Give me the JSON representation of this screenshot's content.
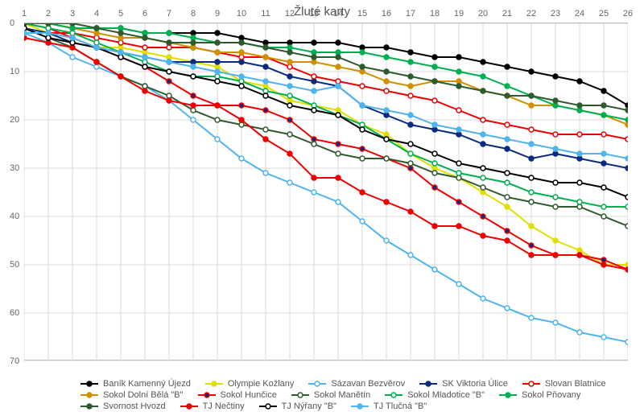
{
  "chart": {
    "type": "line",
    "title": "Žluté karty",
    "title_fontsize": 15,
    "title_color": "#555555",
    "label_fontsize": 11,
    "label_color": "#666666",
    "background_color": "#ffffff",
    "grid_color": "#d9d9d9",
    "axis_color": "#bbbbbb",
    "line_width": 2,
    "marker_radius": 3,
    "marker_style": "circle",
    "x_categories": [
      1,
      2,
      3,
      4,
      5,
      6,
      7,
      8,
      9,
      10,
      11,
      12,
      13,
      14,
      15,
      16,
      17,
      18,
      19,
      20,
      21,
      22,
      23,
      24,
      25,
      26
    ],
    "xlim": [
      1,
      26
    ],
    "ylim": [
      0,
      70
    ],
    "ytick_step": 10,
    "y_inverted": true,
    "series": [
      {
        "name": "Baník Kamenný Újezd",
        "color": "#000000",
        "marker_fill": "#000000",
        "values": [
          0,
          0,
          1,
          1,
          1,
          2,
          2,
          2,
          2,
          3,
          4,
          4,
          4,
          4,
          5,
          5,
          6,
          7,
          7,
          8,
          9,
          10,
          11,
          12,
          14,
          17
        ]
      },
      {
        "name": "Olympie Kožlany",
        "color": "#e0e000",
        "marker_fill": "#e0e000",
        "values": [
          0,
          2,
          3,
          5,
          5,
          6,
          7,
          8,
          9,
          12,
          13,
          16,
          17,
          18,
          21,
          23,
          27,
          30,
          32,
          35,
          38,
          42,
          45,
          47,
          50,
          50
        ]
      },
      {
        "name": "Sázavan Bezvěrov",
        "color": "#4fb4f0",
        "marker_fill": "#ffffff",
        "values": [
          2,
          4,
          7,
          9,
          11,
          13,
          16,
          20,
          24,
          28,
          31,
          33,
          35,
          37,
          41,
          45,
          48,
          51,
          54,
          57,
          59,
          61,
          62,
          64,
          65,
          66
        ]
      },
      {
        "name": "SK Viktoria Úlice",
        "color": "#0a2a80",
        "marker_fill": "#0a2a80",
        "values": [
          1,
          2,
          4,
          5,
          6,
          7,
          8,
          8,
          8,
          8,
          9,
          11,
          12,
          13,
          17,
          19,
          21,
          22,
          23,
          25,
          26,
          28,
          27,
          28,
          29,
          30
        ]
      },
      {
        "name": "Slovan Blatnice",
        "color": "#ef0000",
        "marker_fill": "#ffffff",
        "values": [
          2,
          2,
          2,
          3,
          4,
          5,
          5,
          5,
          6,
          7,
          7,
          9,
          11,
          12,
          13,
          14,
          15,
          16,
          18,
          20,
          21,
          22,
          23,
          23,
          23,
          24
        ]
      },
      {
        "name": "Sokol Dolní Bělá \"B\"",
        "color": "#d09000",
        "marker_fill": "#d09000",
        "values": [
          0,
          0,
          1,
          2,
          3,
          3,
          4,
          5,
          6,
          6,
          7,
          8,
          8,
          9,
          10,
          12,
          13,
          12,
          12,
          14,
          15,
          17,
          17,
          18,
          19,
          21
        ]
      },
      {
        "name": "Sokol Hunčice",
        "color": "#ef0000",
        "marker_fill": "#0a2a80",
        "values": [
          0,
          1,
          3,
          5,
          7,
          9,
          12,
          15,
          17,
          17,
          18,
          20,
          24,
          25,
          26,
          28,
          30,
          34,
          37,
          40,
          43,
          46,
          48,
          48,
          49,
          51
        ]
      },
      {
        "name": "Sokol Manětín",
        "color": "#2f5a2f",
        "marker_fill": "#ffffff",
        "values": [
          1,
          3,
          5,
          8,
          11,
          13,
          15,
          18,
          20,
          21,
          22,
          23,
          25,
          27,
          28,
          28,
          29,
          31,
          32,
          34,
          36,
          37,
          38,
          38,
          40,
          42
        ]
      },
      {
        "name": "Sokol Mladotice \"B\"",
        "color": "#00b050",
        "marker_fill": "#ffffff",
        "values": [
          0,
          1,
          2,
          4,
          6,
          8,
          10,
          11,
          11,
          12,
          14,
          15,
          17,
          19,
          21,
          24,
          27,
          29,
          31,
          32,
          33,
          35,
          36,
          37,
          38,
          38
        ]
      },
      {
        "name": "Sokol Pňovany",
        "color": "#00b050",
        "marker_fill": "#00b050",
        "values": [
          0,
          0,
          1,
          1,
          1,
          2,
          2,
          3,
          4,
          4,
          5,
          5,
          6,
          6,
          6,
          7,
          8,
          9,
          10,
          11,
          13,
          15,
          17,
          18,
          19,
          20
        ]
      },
      {
        "name": "Svornost Hvozd",
        "color": "#2f5a2f",
        "marker_fill": "#2f5a2f",
        "values": [
          0,
          0,
          0,
          1,
          2,
          3,
          4,
          4,
          4,
          4,
          5,
          6,
          7,
          7,
          9,
          10,
          11,
          12,
          13,
          14,
          15,
          15,
          16,
          17,
          17,
          18
        ]
      },
      {
        "name": "TJ Nečtiny",
        "color": "#ef0000",
        "marker_fill": "#ef0000",
        "values": [
          3,
          4,
          5,
          8,
          11,
          14,
          16,
          17,
          17,
          20,
          24,
          27,
          32,
          32,
          35,
          37,
          39,
          42,
          42,
          44,
          45,
          48,
          48,
          48,
          50,
          51
        ]
      },
      {
        "name": "TJ Nýřany \"B\"",
        "color": "#000000",
        "marker_fill": "#ffffff",
        "values": [
          1,
          3,
          4,
          5,
          7,
          9,
          10,
          11,
          12,
          13,
          15,
          17,
          18,
          19,
          22,
          24,
          25,
          27,
          29,
          30,
          31,
          32,
          33,
          33,
          34,
          36
        ]
      },
      {
        "name": "TJ Tlučná \"B\"",
        "color": "#4fb4f0",
        "marker_fill": "#4fb4f0",
        "values": [
          2,
          2,
          3,
          5,
          6,
          7,
          8,
          9,
          10,
          11,
          12,
          13,
          14,
          13,
          17,
          18,
          19,
          21,
          22,
          23,
          24,
          25,
          26,
          27,
          27,
          28
        ]
      }
    ],
    "legend_position": "bottom",
    "legend_columns": 5
  }
}
